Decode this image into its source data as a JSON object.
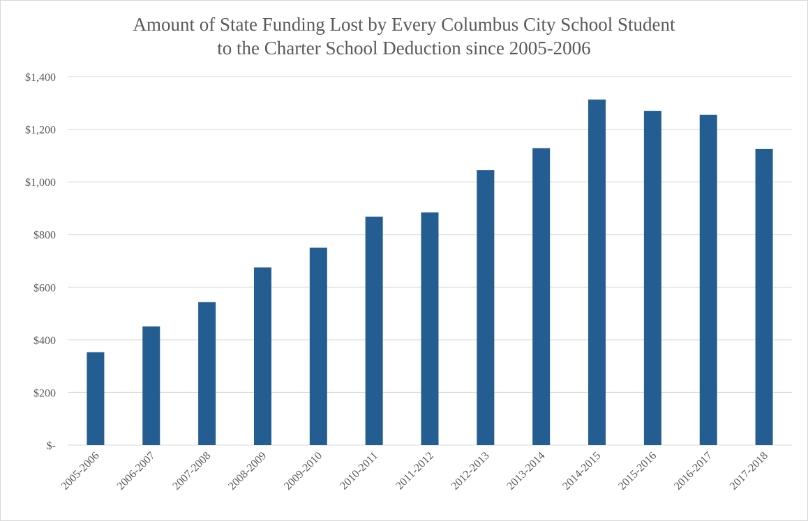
{
  "chart_data": {
    "type": "bar",
    "title": "Amount of State Funding Lost by Every Columbus City School Student to the Charter School Deduction since 2005-2006",
    "title_lines": [
      "Amount of State Funding Lost by Every Columbus City School Student",
      "to the Charter School Deduction since 2005-2006"
    ],
    "categories": [
      "2005-2006",
      "2006-2007",
      "2007-2008",
      "2008-2009",
      "2009-2010",
      "2010-2011",
      "2011-2012",
      "2012-2013",
      "2013-2014",
      "2014-2015",
      "2015-2016",
      "2016-2017",
      "2017-2018"
    ],
    "values": [
      353,
      451,
      543,
      675,
      750,
      868,
      884,
      1045,
      1128,
      1313,
      1270,
      1255,
      1125
    ],
    "ylim": [
      0,
      1400
    ],
    "yticks": [
      0,
      200,
      400,
      600,
      800,
      1000,
      1200,
      1400
    ],
    "ytick_labels": [
      "$-",
      "$200",
      "$400",
      "$600",
      "$800",
      "$1,000",
      "$1,200",
      "$1,400"
    ],
    "xlabel": "",
    "ylabel": "",
    "grid": true,
    "legend": "none",
    "bar_color": "#245D91"
  }
}
